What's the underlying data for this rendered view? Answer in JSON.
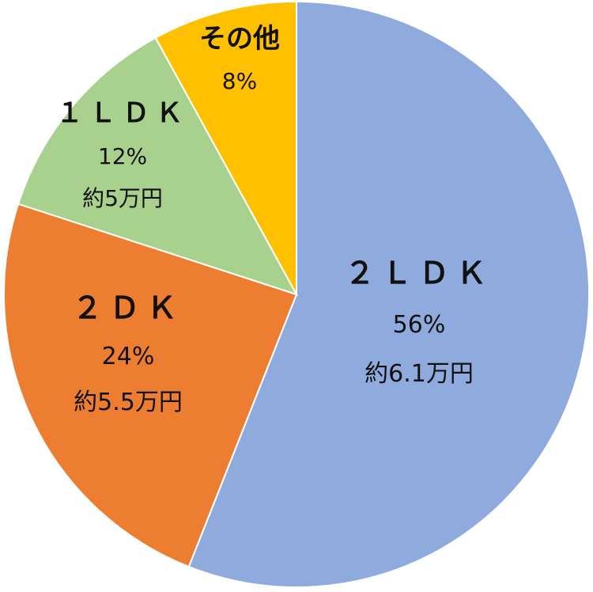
{
  "chart_data": {
    "type": "pie",
    "title": "",
    "start": "top",
    "direction": "clockwise",
    "slices": [
      {
        "label": "２ＬＤＫ",
        "percent_label": "56%",
        "price_label": "約6.1万円",
        "value": 56,
        "color": "#8faadc"
      },
      {
        "label": "２ＤＫ",
        "percent_label": "24%",
        "price_label": "約5.5万円",
        "value": 24,
        "color": "#ed7d31"
      },
      {
        "label": "１ＬＤＫ",
        "percent_label": "12%",
        "price_label": "約5万円",
        "value": 12,
        "color": "#a9d18e"
      },
      {
        "label": "その他",
        "percent_label": "8%",
        "price_label": "",
        "value": 8,
        "color": "#ffc000"
      }
    ]
  }
}
